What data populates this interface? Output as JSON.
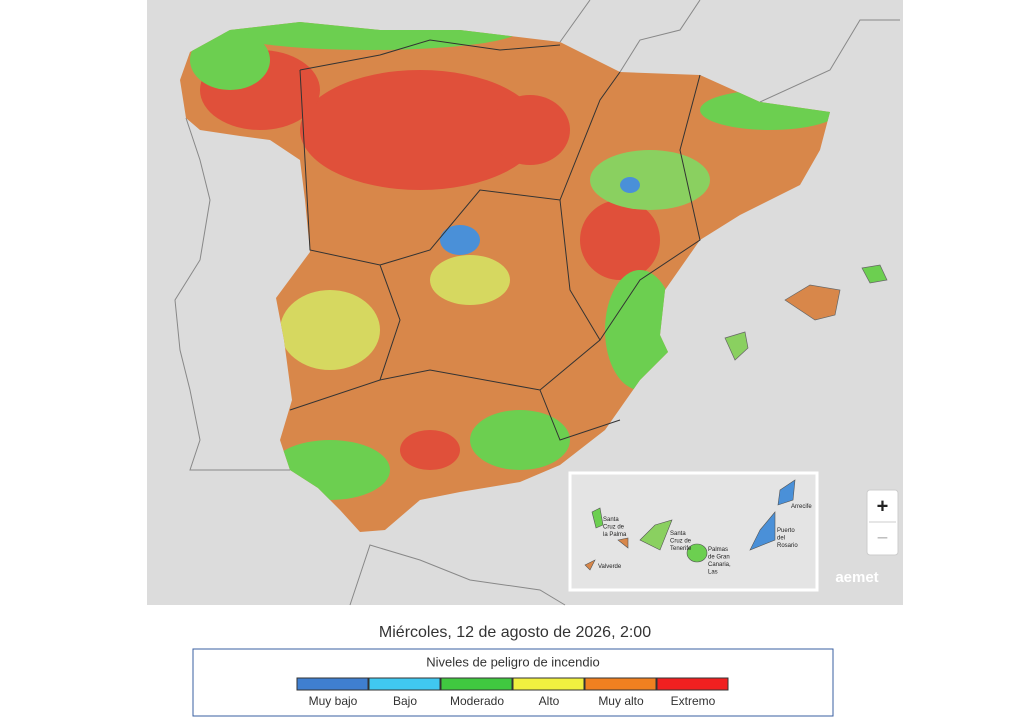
{
  "map": {
    "inset_labels": [
      {
        "lines": [
          "Santa",
          "Cruz de",
          "la Palma"
        ]
      },
      {
        "lines": [
          "Santa",
          "Cruz de",
          "Tenerife"
        ]
      },
      {
        "lines": [
          "Palmas",
          "de Gran",
          "Canaria,",
          "Las"
        ]
      },
      {
        "lines": [
          "Arrecife"
        ]
      },
      {
        "lines": [
          "Puerto",
          "del",
          "Rosario"
        ]
      },
      {
        "lines": [
          "Valverde"
        ]
      }
    ],
    "brand": "aemet",
    "zoom_in": "+",
    "zoom_out": "−"
  },
  "caption": "Miércoles, 12 de agosto de 2026, 2:00",
  "legend": {
    "title": "Niveles de peligro de incendio",
    "levels": [
      {
        "label": "Muy bajo",
        "color": "#3f7fd0"
      },
      {
        "label": "Bajo",
        "color": "#40c8f0"
      },
      {
        "label": "Moderado",
        "color": "#40c840"
      },
      {
        "label": "Alto",
        "color": "#f0f040"
      },
      {
        "label": "Muy alto",
        "color": "#f08020"
      },
      {
        "label": "Extremo",
        "color": "#f02020"
      }
    ]
  }
}
